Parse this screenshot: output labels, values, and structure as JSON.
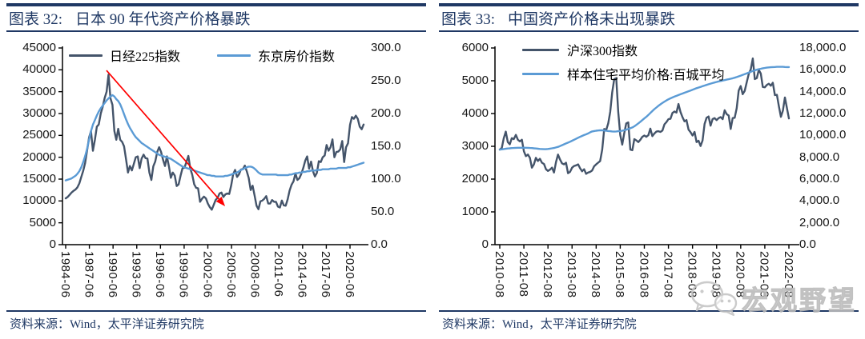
{
  "figures": [
    {
      "label": "图表 32:",
      "title": "日本 90 年代资产价格暴跌",
      "source": "资料来源：Wind，太平洋证券研究院"
    },
    {
      "label": "图表 33:",
      "title": "中国资产价格未出现暴跌",
      "source": "资料来源：Wind，太平洋证券研究院"
    }
  ],
  "watermark": {
    "text": "宏观野望",
    "icon": "wechat-icon",
    "color": "#c4c4c4"
  },
  "colors": {
    "accent_navy": "#1F3864",
    "axis": "#000000",
    "dark_series": "#44546A",
    "light_series": "#5B9BD5",
    "arrow_red": "#FF0000"
  },
  "chart_data": [
    {
      "type": "line",
      "title": "日本 90 年代资产价格暴跌",
      "legend_position": "top-horizontal",
      "grid": false,
      "x_ticks": [
        "1984-06",
        "1987-06",
        "1990-06",
        "1993-06",
        "1996-06",
        "1999-06",
        "2002-06",
        "2005-06",
        "2008-06",
        "2011-06",
        "2014-06",
        "2017-06",
        "2020-06"
      ],
      "y_left": {
        "min": 0,
        "max": 45000,
        "ticks": [
          "0",
          "5000",
          "10000",
          "15000",
          "20000",
          "25000",
          "30000",
          "35000",
          "40000",
          "45000"
        ]
      },
      "y_right": {
        "min": 0,
        "max": 300,
        "ticks": [
          "0.0",
          "50.0",
          "100.0",
          "150.0",
          "200.0",
          "250.0",
          "300.0"
        ]
      },
      "annotation": {
        "type": "arrow",
        "color": "#FF0000",
        "from_frac": [
          0.147,
          0.114
        ],
        "to_frac": [
          0.543,
          0.805
        ]
      },
      "series": [
        {
          "name": "日经225指数",
          "axis": "left",
          "color": "#44546A",
          "x_start": "1984-06",
          "x_step_months": 3,
          "values": [
            10600,
            10900,
            11400,
            11900,
            12300,
            12600,
            13100,
            14000,
            15500,
            16900,
            18700,
            21500,
            24500,
            26000,
            21500,
            24000,
            27000,
            27500,
            30000,
            31500,
            33500,
            35000,
            38900,
            33500,
            32000,
            26000,
            24000,
            26500,
            24000,
            23500,
            22500,
            19500,
            16500,
            18000,
            17000,
            18500,
            20000,
            20200,
            17500,
            19700,
            20600,
            19800,
            19700,
            16500,
            14800,
            17900,
            19000,
            21200,
            22300,
            21200,
            19400,
            18000,
            20200,
            17900,
            15300,
            16500,
            15800,
            13400,
            13800,
            15800,
            17500,
            17600,
            18900,
            20300,
            17400,
            16000,
            13800,
            13000,
            12900,
            9800,
            10500,
            11000,
            10600,
            9400,
            8600,
            8000,
            9100,
            10200,
            10700,
            11700,
            11900,
            10900,
            11500,
            11700,
            11600,
            13600,
            16100,
            17100,
            15500,
            16100,
            17200,
            17300,
            18100,
            16800,
            15300,
            12500,
            13500,
            11300,
            8900,
            8100,
            9900,
            10100,
            10500,
            11100,
            9400,
            9400,
            10200,
            9800,
            9800,
            8700,
            8500,
            10100,
            9000,
            8900,
            10400,
            12400,
            13700,
            14500,
            16300,
            14800,
            15200,
            16200,
            17500,
            19200,
            20200,
            17400,
            19000,
            16800,
            15600,
            16400,
            19100,
            18900,
            20000,
            20400,
            22800,
            21500,
            22300,
            24100,
            20000,
            21200,
            21300,
            21800,
            23700,
            18900,
            22300,
            23200,
            27400,
            29200,
            28800,
            29500,
            28800,
            27000,
            26400,
            27500
          ]
        },
        {
          "name": "东京房价指数",
          "axis": "right",
          "color": "#5B9BD5",
          "x_start": "1984-06",
          "x_step_months": 3,
          "values": [
            98,
            99,
            100,
            101,
            103,
            105,
            108,
            112,
            118,
            126,
            135,
            146,
            160,
            173,
            183,
            190,
            197,
            203,
            208,
            212,
            216,
            220,
            223,
            226,
            228,
            226,
            222,
            219,
            214,
            207,
            199,
            191,
            184,
            178,
            173,
            168,
            164,
            161,
            158,
            155,
            153,
            151,
            149,
            147,
            145,
            143,
            141,
            139,
            137,
            136,
            135,
            134,
            133,
            132,
            131,
            129,
            127,
            125,
            123,
            121,
            119,
            118,
            117,
            116,
            115,
            114,
            113,
            112,
            111,
            110,
            109,
            108,
            107,
            106,
            106,
            105,
            105,
            104,
            104,
            104,
            104,
            104,
            105,
            105,
            106,
            107,
            108,
            109,
            110,
            112,
            114,
            115,
            117,
            118,
            119,
            119,
            118,
            116,
            113,
            110,
            108,
            107,
            107,
            107,
            107,
            107,
            107,
            107,
            107,
            106,
            106,
            106,
            106,
            106,
            106,
            107,
            107,
            108,
            109,
            109,
            110,
            110,
            111,
            111,
            112,
            112,
            113,
            113,
            113,
            114,
            114,
            114,
            115,
            115,
            115,
            115,
            116,
            116,
            116,
            116,
            117,
            117,
            117,
            117,
            117,
            118,
            118,
            119,
            120,
            121,
            122,
            123,
            124,
            125
          ]
        }
      ]
    },
    {
      "type": "line",
      "title": "中国资产价格未出现暴跌",
      "legend_position": "top-vertical",
      "grid": false,
      "x_ticks": [
        "2010-08",
        "2011-08",
        "2012-08",
        "2013-08",
        "2014-08",
        "2015-08",
        "2016-08",
        "2017-08",
        "2018-08",
        "2019-08",
        "2020-08",
        "2021-08",
        "2022-08"
      ],
      "y_left": {
        "min": 0,
        "max": 6000,
        "ticks": [
          "0",
          "1000",
          "2000",
          "3000",
          "4000",
          "5000",
          "6000"
        ]
      },
      "y_right": {
        "min": 0,
        "max": 18000,
        "ticks": [
          "0.0",
          "2,000.0",
          "4,000.0",
          "6,000.0",
          "8,000.0",
          "10,000.0",
          "12,000.0",
          "14,000.0",
          "16,000.0",
          "18,000.0"
        ]
      },
      "series": [
        {
          "name": "沪深300指数",
          "axis": "left",
          "color": "#44546A",
          "x_start": "2010-08",
          "x_step_months": 1,
          "values": [
            2900,
            2950,
            3250,
            3450,
            3130,
            3060,
            3250,
            3220,
            3350,
            3200,
            3150,
            3200,
            2850,
            2700,
            2750,
            2650,
            2350,
            2450,
            2650,
            2550,
            2620,
            2500,
            2460,
            2300,
            2250,
            2290,
            2350,
            2200,
            2520,
            2750,
            2600,
            2480,
            2450,
            2500,
            2180,
            2220,
            2350,
            2400,
            2420,
            2450,
            2330,
            2240,
            2300,
            2160,
            2200,
            2220,
            2260,
            2390,
            2450,
            2500,
            2550,
            2900,
            3530,
            3500,
            3700,
            4050,
            4650,
            5050,
            5080,
            4050,
            3350,
            3050,
            3400,
            3700,
            3730,
            2900,
            2880,
            3220,
            3180,
            3130,
            3200,
            3290,
            3330,
            3290,
            3340,
            3540,
            3310,
            3390,
            3450,
            3460,
            3440,
            3480,
            3670,
            3740,
            3830,
            3840,
            4020,
            4060,
            4030,
            4290,
            4050,
            3890,
            3760,
            3800,
            3510,
            3430,
            3330,
            3440,
            3130,
            3170,
            3010,
            3180,
            3680,
            3870,
            3910,
            3630,
            3830,
            3860,
            3800,
            3860,
            3890,
            3830,
            4100,
            3980,
            3940,
            3530,
            3860,
            3870,
            4160,
            4700,
            4840,
            4590,
            4690,
            4960,
            5210,
            5350,
            5680,
            5050,
            5080,
            5330,
            5220,
            4810,
            4800,
            4870,
            4910,
            4850,
            4940,
            4560,
            4570,
            4220,
            3900,
            4090,
            4490,
            4170,
            3850
          ]
        },
        {
          "name": "样本住宅平均价格:百城平均",
          "axis": "right",
          "color": "#5B9BD5",
          "x_start": "2010-08",
          "x_step_months": 1,
          "values": [
            8700,
            8720,
            8750,
            8780,
            8800,
            8820,
            8840,
            8850,
            8860,
            8870,
            8870,
            8870,
            8870,
            8870,
            8860,
            8850,
            8840,
            8820,
            8800,
            8780,
            8760,
            8750,
            8740,
            8740,
            8760,
            8790,
            8820,
            8850,
            8900,
            8950,
            9020,
            9100,
            9180,
            9260,
            9340,
            9420,
            9510,
            9600,
            9690,
            9780,
            9870,
            9950,
            10030,
            10100,
            10180,
            10280,
            10360,
            10400,
            10430,
            10450,
            10460,
            10460,
            10450,
            10430,
            10400,
            10380,
            10360,
            10350,
            10360,
            10380,
            10400,
            10430,
            10470,
            10520,
            10580,
            10650,
            10730,
            10830,
            10960,
            11100,
            11250,
            11400,
            11550,
            11700,
            11870,
            12050,
            12230,
            12400,
            12550,
            12700,
            12840,
            12970,
            13090,
            13200,
            13300,
            13390,
            13470,
            13550,
            13620,
            13690,
            13760,
            13830,
            13900,
            13970,
            14040,
            14110,
            14180,
            14250,
            14320,
            14380,
            14440,
            14500,
            14560,
            14620,
            14680,
            14740,
            14790,
            14840,
            14890,
            14940,
            14980,
            15020,
            15060,
            15100,
            15140,
            15180,
            15230,
            15280,
            15340,
            15400,
            15470,
            15540,
            15610,
            15680,
            15750,
            15820,
            15890,
            15950,
            16010,
            16060,
            16100,
            16140,
            16170,
            16200,
            16220,
            16240,
            16250,
            16260,
            16270,
            16270,
            16270,
            16270,
            16260,
            16250,
            16250
          ]
        }
      ]
    }
  ]
}
